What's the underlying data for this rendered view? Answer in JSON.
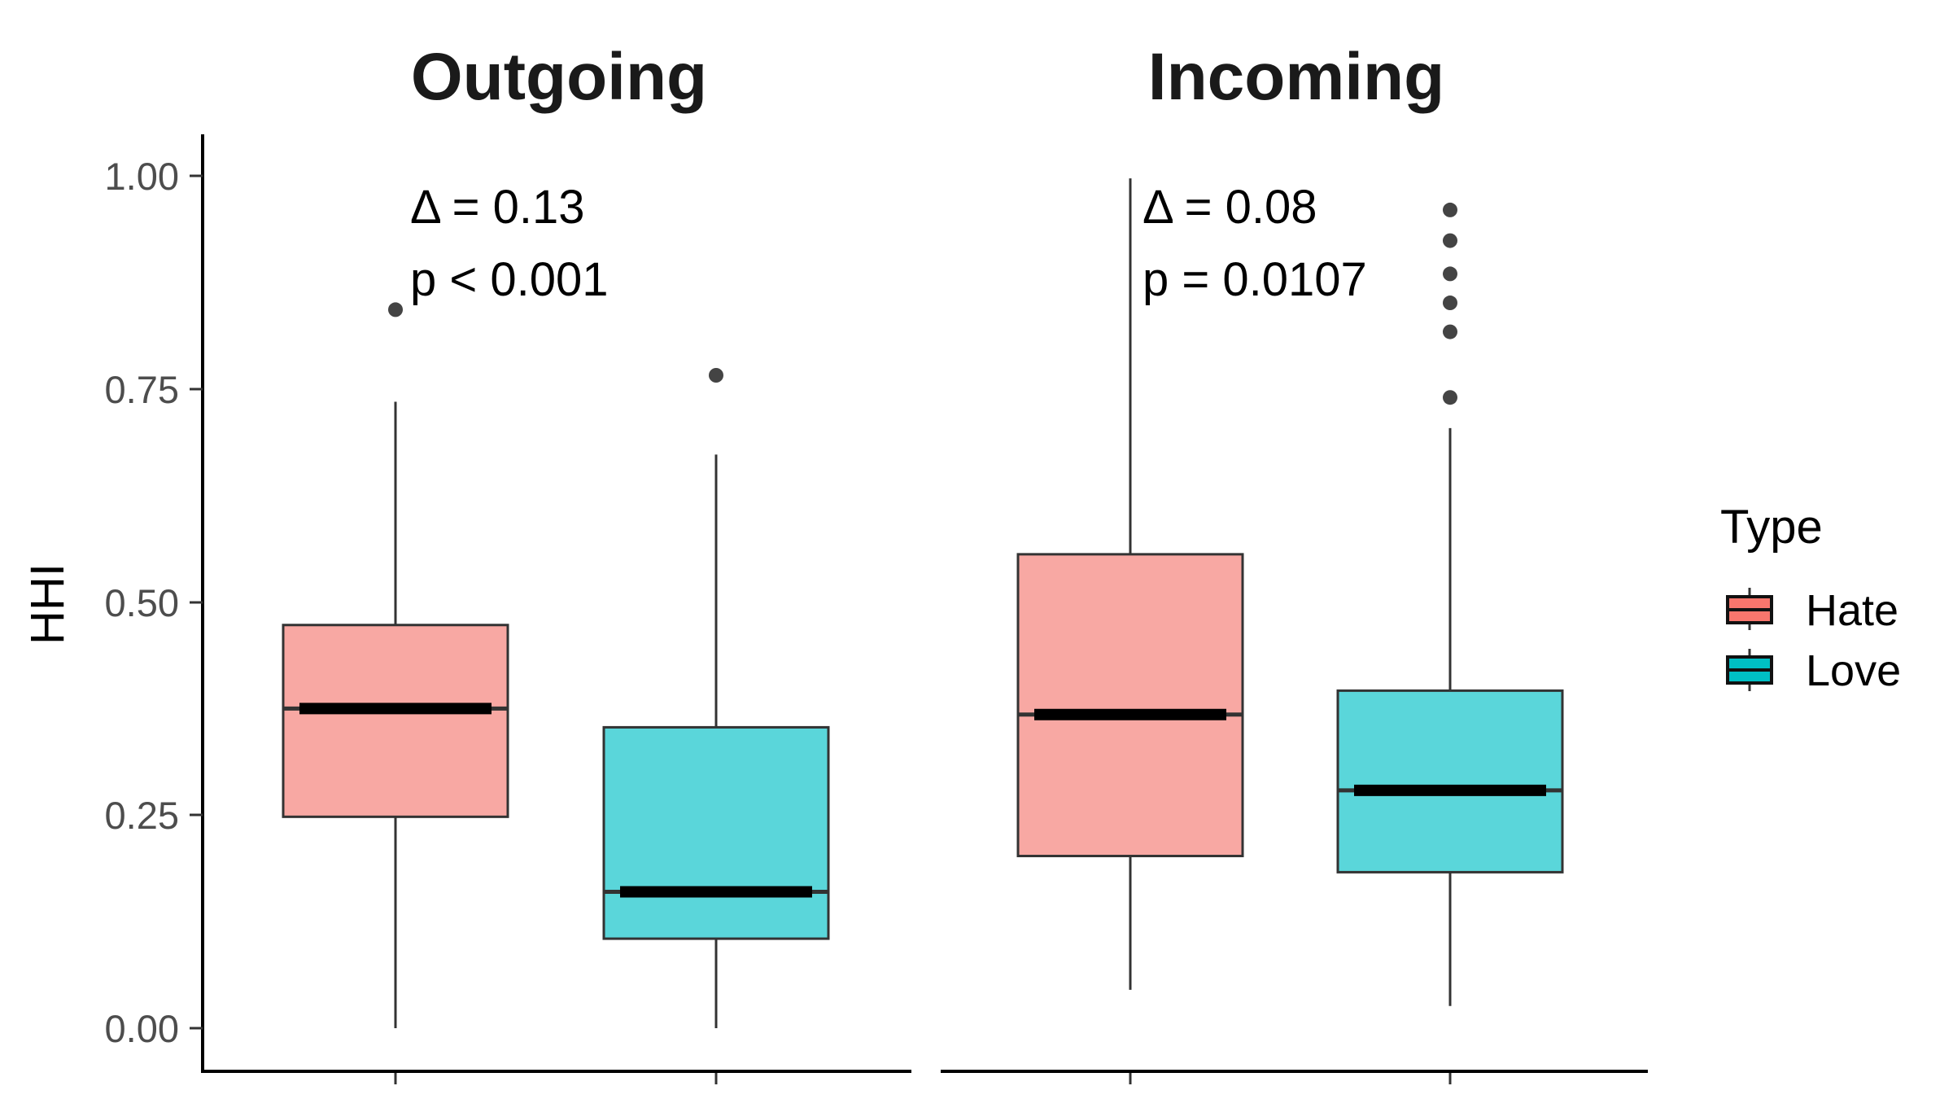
{
  "chart_data": {
    "type": "boxplot",
    "ylabel": "HHI",
    "ylim": [
      0,
      1.0
    ],
    "yticks": [
      "0.00",
      "0.25",
      "0.50",
      "0.75",
      "1.00"
    ],
    "ytick_values": [
      0,
      0.25,
      0.5,
      0.75,
      1.0
    ],
    "legend": {
      "title": "Type",
      "position": "right",
      "entries": [
        {
          "label": "Hate",
          "color": "#F8766D"
        },
        {
          "label": "Love",
          "color": "#00BFC4"
        }
      ]
    },
    "panels": [
      {
        "title": "Outgoing",
        "annotation": {
          "delta": "Δ = 0.13",
          "p": "p < 0.001"
        },
        "boxes": [
          {
            "group": "Hate",
            "whisker_low": 0.0,
            "q1": 0.248,
            "median": 0.375,
            "q3": 0.473,
            "whisker_high": 0.735,
            "outliers": [
              0.843
            ]
          },
          {
            "group": "Love",
            "whisker_low": 0.0,
            "q1": 0.105,
            "median": 0.16,
            "q3": 0.353,
            "whisker_high": 0.673,
            "outliers": [
              0.766
            ]
          }
        ]
      },
      {
        "title": "Incoming",
        "annotation": {
          "delta": "Δ = 0.08",
          "p": "p = 0.0107"
        },
        "boxes": [
          {
            "group": "Hate",
            "whisker_low": 0.045,
            "q1": 0.202,
            "median": 0.368,
            "q3": 0.556,
            "whisker_high": 0.997,
            "outliers": []
          },
          {
            "group": "Love",
            "whisker_low": 0.026,
            "q1": 0.183,
            "median": 0.279,
            "q3": 0.396,
            "whisker_high": 0.704,
            "outliers": [
              0.74,
              0.817,
              0.851,
              0.885,
              0.924,
              0.96
            ]
          }
        ]
      }
    ],
    "colors": {
      "Hate_fill": "#F8A8A3",
      "Love_fill": "#5AD6DA",
      "box_border": "#333333",
      "median": "#000000",
      "outlier": "#444444",
      "axis": "#000000",
      "tick_label": "#4D4D4D"
    }
  }
}
